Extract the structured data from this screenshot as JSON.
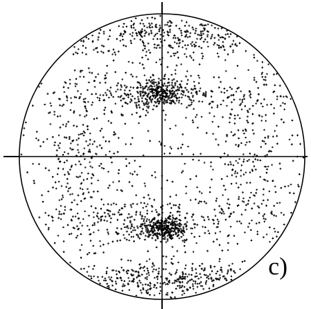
{
  "panel_label": "c)",
  "chart_data": {
    "type": "scatter",
    "projection": "stereographic-pole-figure",
    "title": "",
    "xlabel": "",
    "ylabel": "",
    "legend": "none",
    "grid": false,
    "xlim": [
      -1,
      1
    ],
    "ylim": [
      -1,
      1
    ],
    "crosshair_axes": true,
    "marker": "cross",
    "marker_color": "#000000",
    "approx_point_count": 4000,
    "density_model": {
      "uniform_background_fraction": 0.25,
      "clusters": [
        {
          "name_hint": "north",
          "x": 0.0,
          "y": 0.85,
          "sx": 0.4,
          "sy": 0.07,
          "weight": 0.12
        },
        {
          "name_hint": "south",
          "x": 0.0,
          "y": -0.86,
          "sx": 0.42,
          "sy": 0.07,
          "weight": 0.14
        },
        {
          "name_hint": "upper-center",
          "x": -0.02,
          "y": 0.45,
          "sx": 0.1,
          "sy": 0.05,
          "weight": 0.09
        },
        {
          "name_hint": "lower-center",
          "x": 0.02,
          "y": -0.5,
          "sx": 0.08,
          "sy": 0.04,
          "weight": 0.11
        },
        {
          "name_hint": "upper-band",
          "x": 0.0,
          "y": 0.42,
          "sx": 0.45,
          "sy": 0.06,
          "weight": 0.09
        },
        {
          "name_hint": "lower-band",
          "x": 0.0,
          "y": -0.45,
          "sx": 0.45,
          "sy": 0.07,
          "weight": 0.09
        },
        {
          "name_hint": "ring-left",
          "x": -0.6,
          "y": 0.0,
          "sx": 0.1,
          "sy": 0.3,
          "weight": 0.05
        },
        {
          "name_hint": "ring-right",
          "x": 0.6,
          "y": 0.0,
          "sx": 0.1,
          "sy": 0.3,
          "weight": 0.05
        }
      ]
    }
  }
}
